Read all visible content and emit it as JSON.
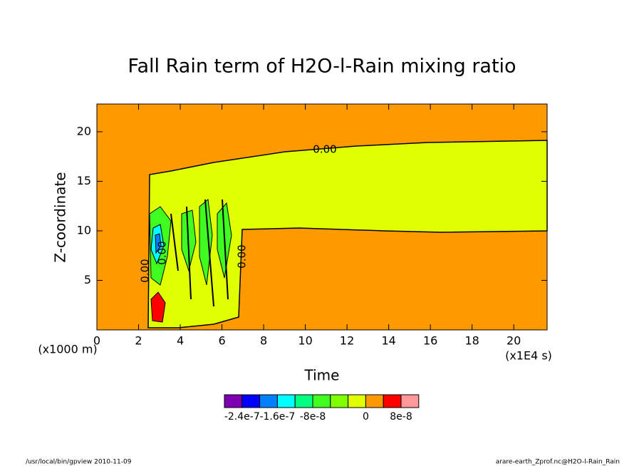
{
  "chart_data": {
    "type": "contour",
    "title": "Fall Rain term of H2O-l-Rain mixing ratio",
    "xlabel": "Time",
    "ylabel": "Z-coordinate",
    "xunit": "(x1E4 s)",
    "yunit": "(x1000 m)",
    "xlim": [
      0,
      21.6
    ],
    "ylim": [
      0,
      22.8
    ],
    "xticks": [
      0,
      2,
      4,
      6,
      8,
      10,
      12,
      14,
      16,
      18,
      20
    ],
    "yticks": [
      5,
      10,
      15,
      20
    ],
    "contour_labels": [
      "0.00",
      "0.00",
      "0.00",
      "0.00"
    ],
    "colorbar": {
      "colors": [
        "#7b00b0",
        "#0000ff",
        "#0080ff",
        "#00ffff",
        "#00ff80",
        "#40ff20",
        "#80ff00",
        "#e0ff00",
        "#ff9900",
        "#ff0000",
        "#ff9999"
      ],
      "labels": [
        "-2.4e-7",
        "-1.6e-7",
        "-8e-8",
        "0",
        "8e-8"
      ]
    },
    "footer_left": "/usr/local/bin/gpview  2010-11-09",
    "footer_right": "arare-earth_Zprof.nc@H2O-l-Rain_Rain"
  }
}
